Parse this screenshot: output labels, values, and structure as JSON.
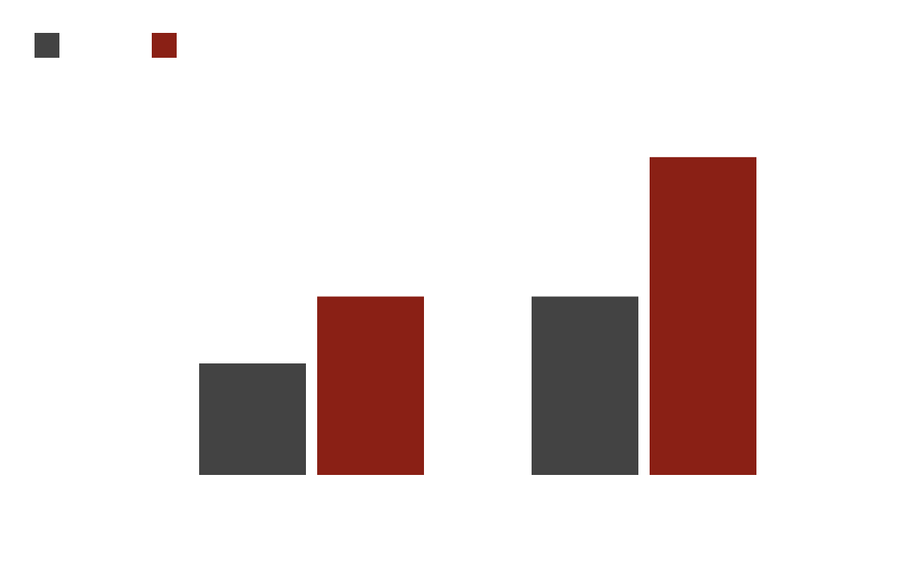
{
  "chart_data": {
    "type": "bar",
    "categories": [
      "",
      ""
    ],
    "series": [
      {
        "values": [
          1.0,
          1.6
        ],
        "color": "#434343"
      },
      {
        "values": [
          1.6,
          2.85
        ],
        "color": "#8a2015"
      }
    ],
    "legend": {
      "placement": "top-left"
    },
    "grid": false,
    "axes_visible": false,
    "ylim": [
      0,
      3.2
    ]
  }
}
